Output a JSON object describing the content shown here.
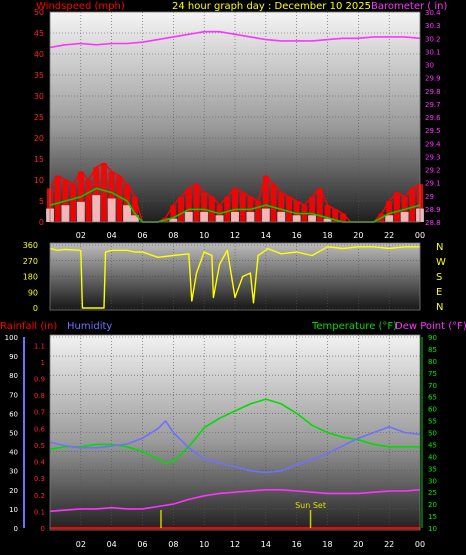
{
  "header": {
    "title": "24 hour graph day : December 10 2025",
    "left_label": "Windspeed (mph)",
    "right_label": "Barometer ( in)"
  },
  "colors": {
    "wind": "#ff0000",
    "wind_avg": "#00cc00",
    "wind_low": "#ffffff",
    "barometer": "#ff33ff",
    "direction": "#ffff00",
    "humidity": "#7070ff",
    "temperature": "#00dd00",
    "dew_point": "#ff33ff",
    "rain": "#ff0000",
    "sunset_marker": "#cccc00"
  },
  "x_tick_labels": [
    "02",
    "04",
    "06",
    "08",
    "10",
    "12",
    "14",
    "16",
    "18",
    "20",
    "22",
    "00"
  ],
  "wind_panel": {
    "y_ticks": [
      "0",
      "5",
      "10",
      "15",
      "20",
      "25",
      "30",
      "35",
      "40",
      "45",
      "50"
    ],
    "baro_ticks": [
      "28.8",
      "28.9",
      "29",
      "29.1",
      "29.2",
      "29.3",
      "29.4",
      "29.5",
      "29.6",
      "29.7",
      "29.8",
      "29.9",
      "30",
      "30.1",
      "30.2",
      "30.3",
      "30.4"
    ]
  },
  "direction_panel": {
    "y_ticks": [
      "0",
      "90",
      "180",
      "270",
      "360"
    ],
    "compass": [
      "N",
      "W",
      "S",
      "E",
      "N"
    ]
  },
  "lower_panel": {
    "rain_label": "Rainfall (in)",
    "humidity_label": "Humidity",
    "temp_label": "Temperature (°F)",
    "dew_label": "Dew Point (°F)",
    "humidity_ticks": [
      "0",
      "10",
      "20",
      "30",
      "40",
      "50",
      "60",
      "70",
      "80",
      "90",
      "100"
    ],
    "rain_ticks": [
      "0",
      "0.1",
      "0.2",
      "0.3",
      "0.4",
      "0.5",
      "0.6",
      "0.7",
      "0.8",
      "0.9",
      "1",
      "1.1"
    ],
    "temp_ticks": [
      "10",
      "15",
      "20",
      "25",
      "30",
      "35",
      "40",
      "45",
      "50",
      "55",
      "60",
      "65",
      "70",
      "75",
      "80",
      "85",
      "90"
    ],
    "sunset_label": "Sun Set"
  },
  "chart_data": [
    {
      "type": "line",
      "title": "24 hour graph day : December 10 2025",
      "x_unit": "hour",
      "xlim": [
        0,
        24
      ],
      "ylim": [
        0,
        50
      ],
      "y2lim": [
        28.8,
        30.4
      ],
      "series": [
        {
          "name": "Windspeed (mph)",
          "axis": "left",
          "x": [
            0,
            0.5,
            1,
            1.5,
            2,
            2.5,
            3,
            3.5,
            4,
            4.5,
            5,
            5.5,
            6,
            7,
            7.5,
            8,
            8.5,
            9,
            9.5,
            10,
            10.5,
            11,
            11.5,
            12,
            12.5,
            13,
            13.5,
            14,
            14.5,
            15,
            15.5,
            16,
            16.5,
            17,
            17.5,
            18,
            18.5,
            19,
            19.5,
            20,
            21,
            21.5,
            22,
            22.5,
            23,
            23.5,
            24
          ],
          "y": [
            8,
            11,
            10,
            9,
            12,
            10,
            13,
            14,
            12,
            11,
            9,
            6,
            0,
            0,
            1,
            4,
            6,
            8,
            9,
            7,
            6,
            4,
            6,
            8,
            7,
            6,
            5,
            11,
            9,
            7,
            6,
            5,
            4,
            6,
            8,
            4,
            3,
            2,
            0,
            0,
            0,
            2,
            5,
            7,
            6,
            8,
            9
          ]
        },
        {
          "name": "Wind average (mph)",
          "axis": "left",
          "x": [
            0,
            1,
            2,
            3,
            4,
            5,
            5.5,
            6,
            7,
            8,
            9,
            10,
            11,
            12,
            13,
            14,
            15,
            16,
            17,
            18,
            19,
            20,
            21,
            22,
            23,
            24
          ],
          "y": [
            4,
            5,
            6,
            8,
            7,
            5,
            2,
            0,
            0,
            1,
            3,
            3,
            2,
            3,
            3,
            4,
            3,
            2,
            2,
            1,
            0,
            0,
            0,
            2,
            3,
            4
          ]
        },
        {
          "name": "Barometer ( in)",
          "axis": "right",
          "x": [
            0,
            1,
            2,
            3,
            4,
            5,
            6,
            7,
            8,
            9,
            10,
            11,
            12,
            13,
            14,
            15,
            16,
            17,
            18,
            19,
            20,
            21,
            22,
            23,
            24
          ],
          "y": [
            30.13,
            30.15,
            30.16,
            30.15,
            30.16,
            30.16,
            30.17,
            30.19,
            30.21,
            30.23,
            30.25,
            30.25,
            30.23,
            30.21,
            30.19,
            30.18,
            30.18,
            30.18,
            30.19,
            30.2,
            30.2,
            30.21,
            30.21,
            30.21,
            30.2
          ]
        }
      ]
    },
    {
      "type": "line",
      "title": "",
      "x_unit": "hour",
      "xlim": [
        0,
        24
      ],
      "ylim": [
        0,
        360
      ],
      "series": [
        {
          "name": "Wind direction",
          "x": [
            0,
            0.5,
            1,
            2,
            2.1,
            3.5,
            3.6,
            4,
            5,
            5.5,
            6,
            7,
            8,
            9,
            9.2,
            9.5,
            10,
            10.5,
            10.6,
            11,
            11.5,
            12,
            12.5,
            13,
            13.2,
            13.5,
            14,
            14.1,
            15,
            16,
            17,
            18,
            19,
            20,
            21,
            22,
            23,
            24
          ],
          "y": [
            340,
            330,
            335,
            330,
            0,
            0,
            320,
            330,
            330,
            320,
            320,
            290,
            300,
            310,
            40,
            200,
            320,
            300,
            60,
            250,
            330,
            60,
            180,
            200,
            30,
            300,
            330,
            340,
            310,
            320,
            300,
            350,
            340,
            350,
            350,
            340,
            350,
            350
          ]
        }
      ]
    },
    {
      "type": "line",
      "title": "",
      "x_unit": "hour",
      "xlim": [
        0,
        24
      ],
      "ylim": [
        0,
        100
      ],
      "y2lim": [
        10,
        90
      ],
      "series": [
        {
          "name": "Humidity",
          "axis": "humidity",
          "x": [
            0,
            1,
            2,
            3,
            4,
            5,
            6,
            7,
            7.5,
            8,
            9,
            10,
            11,
            12,
            13,
            14,
            15,
            16,
            17,
            18,
            19,
            20,
            21,
            22,
            23,
            24
          ],
          "y": [
            45,
            43,
            42,
            42,
            43,
            44,
            47,
            52,
            56,
            50,
            42,
            36,
            34,
            32,
            30,
            29,
            30,
            33,
            36,
            39,
            43,
            47,
            50,
            53,
            50,
            49
          ]
        },
        {
          "name": "Temperature (°F)",
          "axis": "temp",
          "x": [
            0,
            1,
            2,
            3,
            4,
            5,
            6,
            7,
            7.5,
            8,
            9,
            10,
            11,
            12,
            13,
            14,
            15,
            16,
            17,
            18,
            19,
            20,
            21,
            22,
            23,
            24
          ],
          "y": [
            43,
            44,
            44,
            45,
            45,
            44,
            42,
            39,
            37,
            38,
            44,
            52,
            56,
            59,
            62,
            64,
            62,
            58,
            53,
            50,
            48,
            47,
            45,
            44,
            44,
            44
          ]
        },
        {
          "name": "Dew Point (°F)",
          "axis": "temp",
          "x": [
            0,
            1,
            2,
            3,
            4,
            5,
            6,
            7,
            8,
            9,
            10,
            11,
            12,
            13,
            14,
            15,
            16,
            17,
            18,
            19,
            20,
            21,
            22,
            23,
            24
          ],
          "y": [
            17,
            17.5,
            18,
            18,
            18.5,
            18,
            18,
            19,
            20,
            22,
            23.5,
            24.5,
            25,
            25.5,
            26,
            26,
            25.5,
            25,
            24.5,
            24.5,
            24.5,
            25,
            25.5,
            25.5,
            26
          ]
        },
        {
          "name": "Rainfall (in)",
          "axis": "rain",
          "x": [
            0,
            24
          ],
          "y": [
            0,
            0
          ]
        }
      ],
      "annotations": [
        {
          "label": "Sun Set",
          "x": 16.9
        }
      ]
    }
  ]
}
